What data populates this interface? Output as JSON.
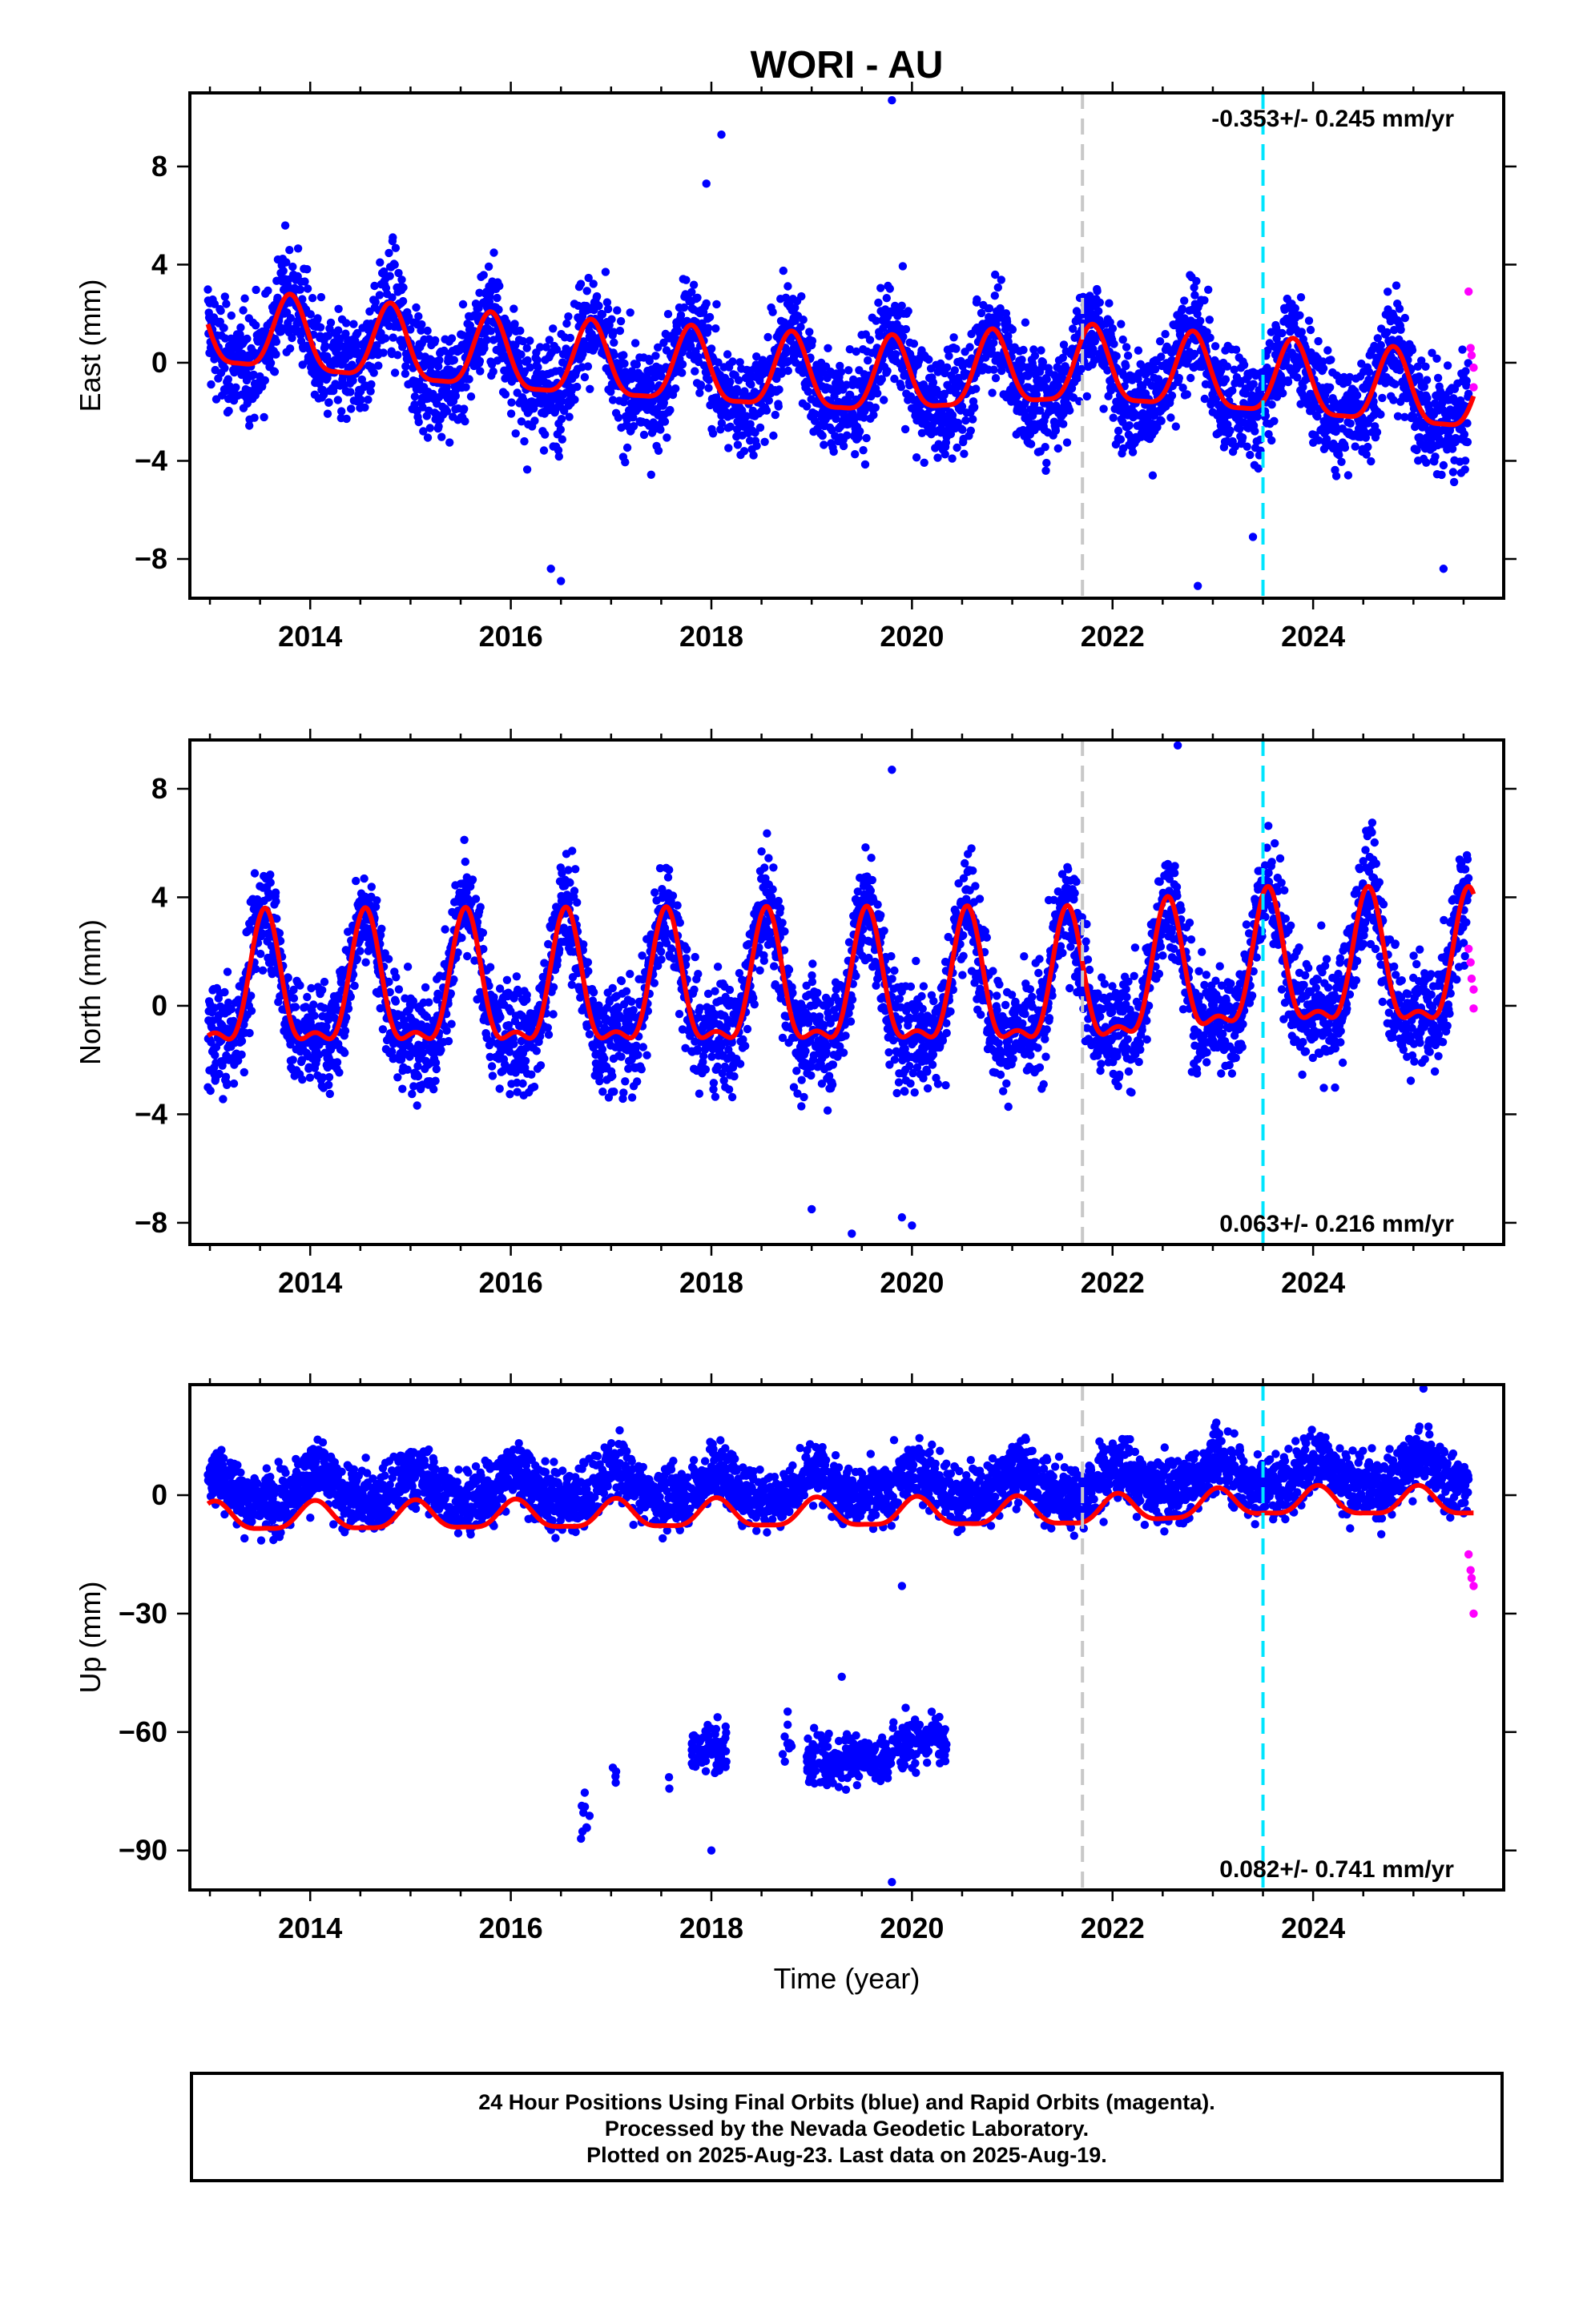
{
  "title": "WORI - AU",
  "xlabel": "Time (year)",
  "footer": {
    "line1": "24 Hour Positions Using Final Orbits (blue) and Rapid Orbits (magenta).",
    "line2": "Processed by the Nevada Geodetic Laboratory.",
    "line3": "Plotted on 2025-Aug-23. Last data on 2025-Aug-19."
  },
  "colors": {
    "final_orbits": "#0000ff",
    "rapid_orbits": "#ff00ff",
    "model_fit": "#ff0000",
    "event_gray": "#c8c8c8",
    "event_cyan": "#00e5ff"
  },
  "chart_data": [
    {
      "type": "scatter",
      "panel": "east",
      "ylabel": "East (mm)",
      "rate_label": "-0.353+/- 0.245 mm/yr",
      "rate_position": "top-right",
      "xlim": [
        2012.8,
        2025.9
      ],
      "ylim": [
        -9.6,
        11.0
      ],
      "xticks": [
        2014,
        2016,
        2018,
        2020,
        2022,
        2024
      ],
      "yticks": [
        -8,
        -4,
        0,
        4,
        8
      ],
      "ytick_labels": [
        "−8",
        "−4",
        "0",
        "4",
        "8"
      ],
      "event_lines": [
        {
          "x": 2021.7,
          "color": "gray",
          "style": "dashed"
        },
        {
          "x": 2023.5,
          "color": "cyan",
          "style": "dashed"
        }
      ],
      "model": {
        "annual_amp": 1.5,
        "phase_peak": 0.8,
        "semi_amp": 0.4,
        "offsets": [
          {
            "x": 2012.95,
            "y": 1.2
          },
          {
            "x": 2016.3,
            "y": 0.0
          },
          {
            "x": 2019.6,
            "y": -0.8
          },
          {
            "x": 2021.7,
            "y": -0.3
          },
          {
            "x": 2023.5,
            "y": -0.8
          },
          {
            "x": 2025.9,
            "y": -1.6
          }
        ]
      },
      "scatter_noise": 1.5,
      "rapid_points": [
        {
          "x": 2025.55,
          "y": 2.9
        },
        {
          "x": 2025.57,
          "y": 0.6
        },
        {
          "x": 2025.58,
          "y": 0.3
        },
        {
          "x": 2025.6,
          "y": -0.2
        },
        {
          "x": 2025.6,
          "y": -1.0
        }
      ],
      "outliers": [
        {
          "x": 2019.8,
          "y": 10.7
        },
        {
          "x": 2018.1,
          "y": 9.3
        },
        {
          "x": 2017.95,
          "y": 7.3
        },
        {
          "x": 2016.4,
          "y": -8.4
        },
        {
          "x": 2016.5,
          "y": -8.9
        },
        {
          "x": 2022.85,
          "y": -9.1
        },
        {
          "x": 2023.4,
          "y": -7.1
        },
        {
          "x": 2025.3,
          "y": -8.4
        }
      ]
    },
    {
      "type": "scatter",
      "panel": "north",
      "ylabel": "North (mm)",
      "rate_label": "0.063+/- 0.216 mm/yr",
      "rate_position": "bottom-right",
      "xlim": [
        2012.8,
        2025.9
      ],
      "ylim": [
        -8.8,
        9.8
      ],
      "xticks": [
        2014,
        2016,
        2018,
        2020,
        2022,
        2024
      ],
      "yticks": [
        -8,
        -4,
        0,
        4,
        8
      ],
      "ytick_labels": [
        "−8",
        "−4",
        "0",
        "4",
        "8"
      ],
      "event_lines": [
        {
          "x": 2021.7,
          "color": "gray",
          "style": "dashed"
        },
        {
          "x": 2023.5,
          "color": "cyan",
          "style": "dashed"
        }
      ],
      "model": {
        "annual_amp": 2.3,
        "phase_peak": 0.55,
        "semi_amp": 0.9,
        "offsets": [
          {
            "x": 2012.95,
            "y": 0.4
          },
          {
            "x": 2021.7,
            "y": 0.5
          },
          {
            "x": 2023.5,
            "y": 1.2
          },
          {
            "x": 2025.9,
            "y": 1.2
          }
        ]
      },
      "scatter_noise": 1.4,
      "rapid_points": [
        {
          "x": 2025.55,
          "y": 2.1
        },
        {
          "x": 2025.57,
          "y": 1.6
        },
        {
          "x": 2025.58,
          "y": 1.0
        },
        {
          "x": 2025.6,
          "y": 0.6
        },
        {
          "x": 2025.6,
          "y": -0.1
        }
      ],
      "outliers": [
        {
          "x": 2019.8,
          "y": 8.7
        },
        {
          "x": 2022.65,
          "y": 9.6
        },
        {
          "x": 2019.4,
          "y": -8.4
        },
        {
          "x": 2019.0,
          "y": -7.5
        },
        {
          "x": 2020.0,
          "y": -8.1
        },
        {
          "x": 2019.9,
          "y": -7.8
        }
      ]
    },
    {
      "type": "scatter",
      "panel": "up",
      "ylabel": "Up (mm)",
      "rate_label": "0.082+/- 0.741 mm/yr",
      "rate_position": "bottom-right",
      "xlim": [
        2012.8,
        2025.9
      ],
      "ylim": [
        -100,
        28
      ],
      "xticks": [
        2014,
        2016,
        2018,
        2020,
        2022,
        2024
      ],
      "yticks": [
        -90,
        -60,
        -30,
        0
      ],
      "ytick_labels": [
        "−90",
        "−60",
        "−30",
        "0"
      ],
      "event_lines": [
        {
          "x": 2021.7,
          "color": "gray",
          "style": "dashed"
        },
        {
          "x": 2023.5,
          "color": "cyan",
          "style": "dashed"
        }
      ],
      "model": {
        "annual_amp": 3.5,
        "phase_peak": 0.05,
        "semi_amp": 1.0,
        "offsets": [
          {
            "x": 2012.95,
            "y": -6.0
          },
          {
            "x": 2021.7,
            "y": -4.5
          },
          {
            "x": 2023.5,
            "y": -2.0
          },
          {
            "x": 2025.9,
            "y": -2.0
          }
        ]
      },
      "scatter_noise": 5.5,
      "scatter_offset": 7,
      "rapid_points": [
        {
          "x": 2025.55,
          "y": -15
        },
        {
          "x": 2025.57,
          "y": -19
        },
        {
          "x": 2025.58,
          "y": -21
        },
        {
          "x": 2025.6,
          "y": -23
        },
        {
          "x": 2025.6,
          "y": -30
        }
      ],
      "low_clusters": [
        {
          "x0": 2016.7,
          "x1": 2016.8,
          "y": -82,
          "n": 8
        },
        {
          "x0": 2017.0,
          "x1": 2017.05,
          "y": -72,
          "n": 4
        },
        {
          "x0": 2017.55,
          "x1": 2017.6,
          "y": -70,
          "n": 2
        },
        {
          "x0": 2017.8,
          "x1": 2018.15,
          "y": -64,
          "n": 80
        },
        {
          "x0": 2018.7,
          "x1": 2018.8,
          "y": -62,
          "n": 10
        },
        {
          "x0": 2018.95,
          "x1": 2019.8,
          "y": -67,
          "n": 220
        },
        {
          "x0": 2019.8,
          "x1": 2020.35,
          "y": -62,
          "n": 130
        }
      ],
      "outliers": [
        {
          "x": 2019.8,
          "y": -98
        },
        {
          "x": 2018.0,
          "y": -90
        },
        {
          "x": 2019.9,
          "y": -23
        },
        {
          "x": 2025.1,
          "y": 27
        },
        {
          "x": 2016.7,
          "y": -87
        },
        {
          "x": 2019.3,
          "y": -46
        }
      ]
    }
  ]
}
